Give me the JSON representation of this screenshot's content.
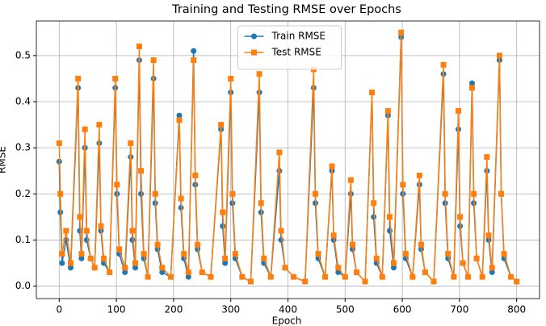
{
  "chart_data": {
    "type": "line",
    "title": "Training and Testing RMSE over Epochs",
    "x_label": "Epoch",
    "y_label": "RMSE",
    "x": [
      0,
      2,
      5,
      12,
      20,
      33,
      36,
      39,
      45,
      48,
      55,
      62,
      70,
      73,
      78,
      88,
      98,
      101,
      105,
      115,
      125,
      128,
      133,
      140,
      143,
      148,
      155,
      165,
      168,
      172,
      180,
      195,
      210,
      213,
      218,
      226,
      235,
      238,
      242,
      250,
      265,
      283,
      286,
      290,
      300,
      303,
      308,
      320,
      335,
      350,
      353,
      358,
      370,
      385,
      388,
      395,
      410,
      430,
      445,
      448,
      453,
      465,
      477,
      480,
      488,
      500,
      510,
      513,
      520,
      535,
      547,
      550,
      555,
      565,
      575,
      578,
      585,
      598,
      601,
      606,
      618,
      630,
      633,
      640,
      655,
      672,
      675,
      680,
      690,
      698,
      701,
      706,
      715,
      722,
      725,
      730,
      740,
      748,
      751,
      757,
      770,
      773,
      778,
      790,
      800
    ],
    "series": [
      {
        "name": "Train RMSE",
        "color": "#1f77b4",
        "marker": "circle",
        "values": [
          0.27,
          0.16,
          0.05,
          0.1,
          0.04,
          0.43,
          0.12,
          0.06,
          0.3,
          0.1,
          0.06,
          0.04,
          0.31,
          0.12,
          0.05,
          0.03,
          0.43,
          0.2,
          0.07,
          0.03,
          0.28,
          0.1,
          0.04,
          0.49,
          0.2,
          0.06,
          0.02,
          0.45,
          0.18,
          0.08,
          0.03,
          0.02,
          0.37,
          0.17,
          0.06,
          0.02,
          0.51,
          0.22,
          0.08,
          0.03,
          0.02,
          0.34,
          0.13,
          0.05,
          0.42,
          0.18,
          0.06,
          0.02,
          0.01,
          0.42,
          0.16,
          0.05,
          0.02,
          0.25,
          0.1,
          0.04,
          0.02,
          0.01,
          0.43,
          0.18,
          0.06,
          0.02,
          0.25,
          0.1,
          0.03,
          0.02,
          0.2,
          0.08,
          0.03,
          0.01,
          0.42,
          0.15,
          0.05,
          0.02,
          0.37,
          0.12,
          0.04,
          0.54,
          0.2,
          0.06,
          0.02,
          0.22,
          0.08,
          0.03,
          0.01,
          0.46,
          0.18,
          0.06,
          0.02,
          0.34,
          0.13,
          0.05,
          0.02,
          0.44,
          0.18,
          0.06,
          0.02,
          0.25,
          0.1,
          0.03,
          0.49,
          0.2,
          0.06,
          0.02,
          0.01
        ]
      },
      {
        "name": "Test RMSE",
        "color": "#ff7f0e",
        "marker": "square",
        "values": [
          0.31,
          0.2,
          0.07,
          0.12,
          0.05,
          0.45,
          0.15,
          0.07,
          0.34,
          0.12,
          0.06,
          0.04,
          0.35,
          0.13,
          0.06,
          0.03,
          0.45,
          0.22,
          0.08,
          0.04,
          0.31,
          0.12,
          0.05,
          0.52,
          0.25,
          0.07,
          0.02,
          0.49,
          0.2,
          0.09,
          0.04,
          0.02,
          0.36,
          0.19,
          0.07,
          0.03,
          0.49,
          0.24,
          0.09,
          0.03,
          0.02,
          0.35,
          0.16,
          0.06,
          0.45,
          0.2,
          0.07,
          0.02,
          0.01,
          0.46,
          0.18,
          0.06,
          0.02,
          0.29,
          0.12,
          0.04,
          0.02,
          0.01,
          0.47,
          0.2,
          0.07,
          0.02,
          0.26,
          0.11,
          0.04,
          0.02,
          0.23,
          0.09,
          0.03,
          0.01,
          0.42,
          0.18,
          0.06,
          0.02,
          0.38,
          0.15,
          0.05,
          0.55,
          0.22,
          0.07,
          0.02,
          0.24,
          0.09,
          0.03,
          0.01,
          0.48,
          0.2,
          0.07,
          0.02,
          0.38,
          0.15,
          0.05,
          0.02,
          0.43,
          0.2,
          0.06,
          0.02,
          0.28,
          0.11,
          0.04,
          0.5,
          0.2,
          0.07,
          0.02,
          0.01
        ]
      }
    ],
    "xlim": [
      -40,
      840
    ],
    "ylim": [
      -0.027,
      0.575
    ],
    "xticks": [
      0,
      100,
      200,
      300,
      400,
      500,
      600,
      700,
      800
    ],
    "yticks": [
      {
        "value": 0,
        "label": "0.0"
      },
      0.1,
      0.2,
      0.3,
      0.4,
      0.5
    ],
    "grid": true,
    "legend": "upper center"
  }
}
